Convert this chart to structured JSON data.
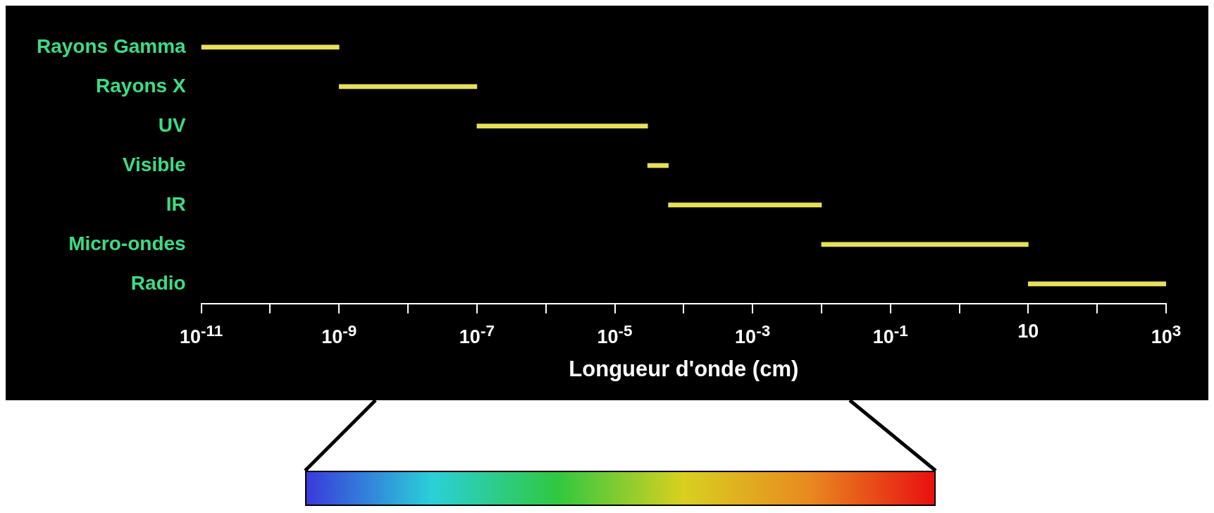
{
  "chart_data": {
    "type": "bar",
    "orientation": "horizontal",
    "log": "x",
    "categories": [
      "Rayons Gamma",
      "Rayons X",
      "UV",
      "Visible",
      "IR",
      "Micro-ondes",
      "Radio"
    ],
    "legend": false,
    "grid": false,
    "xlabel": "Longueur d'onde (cm)",
    "xlim": [
      1e-11,
      1000
    ],
    "xticks": [
      {
        "value": 1e-11,
        "label": "10$^{-11}$"
      },
      {
        "value": 1e-10,
        "label": null
      },
      {
        "value": 1e-09,
        "label": "10$^{-9}$"
      },
      {
        "value": 1e-08,
        "label": null
      },
      {
        "value": 1e-07,
        "label": "10$^{-7}$"
      },
      {
        "value": 1e-06,
        "label": null
      },
      {
        "value": 1e-05,
        "label": "10$^{-5}$"
      },
      {
        "value": 0.0001,
        "label": null
      },
      {
        "value": 0.001,
        "label": "10$^{-3}$"
      },
      {
        "value": 0.01,
        "label": null
      },
      {
        "value": 0.1,
        "label": "10$^{-1}$"
      },
      {
        "value": 1,
        "label": null
      },
      10,
      {
        "value": 100,
        "label": null
      },
      {
        "value": 1000,
        "label": "10$^{3}$"
      }
    ],
    "series": [
      {
        "color": "#e8e05a",
        "base": [
          1e-11,
          1e-09,
          1e-07,
          3e-05,
          6e-05,
          0.01,
          10
        ],
        "values": [
          9.9e-10,
          9.9e-08,
          2.99e-05,
          3e-05,
          0.00994,
          9.99,
          990
        ]
      }
    ]
  }
}
